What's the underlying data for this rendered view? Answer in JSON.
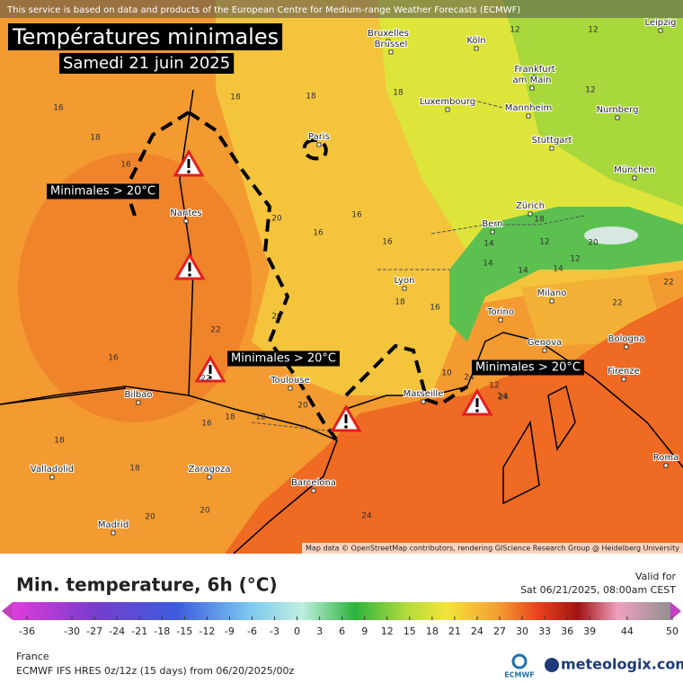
{
  "notice": "This service is based on data and products of the European Centre for Medium-range Weather Forecasts (ECMWF)",
  "title": "Températures minimales",
  "subtitle": "Samedi 21 juin 2025",
  "annotations": [
    "Minimales > 20°C",
    "Minimales > 20°C",
    "Minimales > 20°C"
  ],
  "cities": [
    "Leipzig",
    "Bruxelles",
    "Brussel",
    "Köln",
    "Frankfurt",
    "am Main",
    "Luxembourg",
    "Mannheim",
    "Nurnberg",
    "Paris",
    "Stuttgart",
    "München",
    "Nantes",
    "Zürich",
    "Bern",
    "Lyon",
    "Milano",
    "Torino",
    "Genova",
    "Bologna",
    "Firenze",
    "Toulouse",
    "Marseille",
    "Bilbao",
    "Valladolid",
    "Zaragoza",
    "Barcelona",
    "Roma",
    "Madrid"
  ],
  "temps": [
    16,
    18,
    18,
    16,
    20,
    12,
    12,
    12,
    12,
    12,
    14,
    14,
    16,
    16,
    18,
    20,
    22,
    22,
    20,
    16,
    16,
    18,
    18,
    14,
    14,
    12,
    10,
    22,
    22,
    20,
    18,
    20,
    24,
    24,
    18,
    16,
    18,
    20,
    20,
    24,
    24,
    16,
    18,
    12
  ],
  "attribution": "Map data © OpenStreetMap contributors, rendering GIScience Research Group @ Heidelberg University",
  "legend": {
    "title": "Min. temperature, 6h (°C)",
    "valid_label": "Valid for",
    "valid_time": "Sat 06/21/2025, 08:00am CEST",
    "ticks": [
      -36,
      -30,
      -27,
      -24,
      -21,
      -18,
      -15,
      -12,
      -9,
      -6,
      -3,
      0,
      3,
      6,
      9,
      12,
      15,
      18,
      21,
      24,
      27,
      30,
      33,
      36,
      39,
      44,
      50
    ]
  },
  "footer": {
    "region": "France",
    "model": "ECMWF IFS HRES 0z/12z (15 days) from 06/20/2025/00z",
    "ecmwf": "ECMWF",
    "brand": "meteologix.com"
  }
}
